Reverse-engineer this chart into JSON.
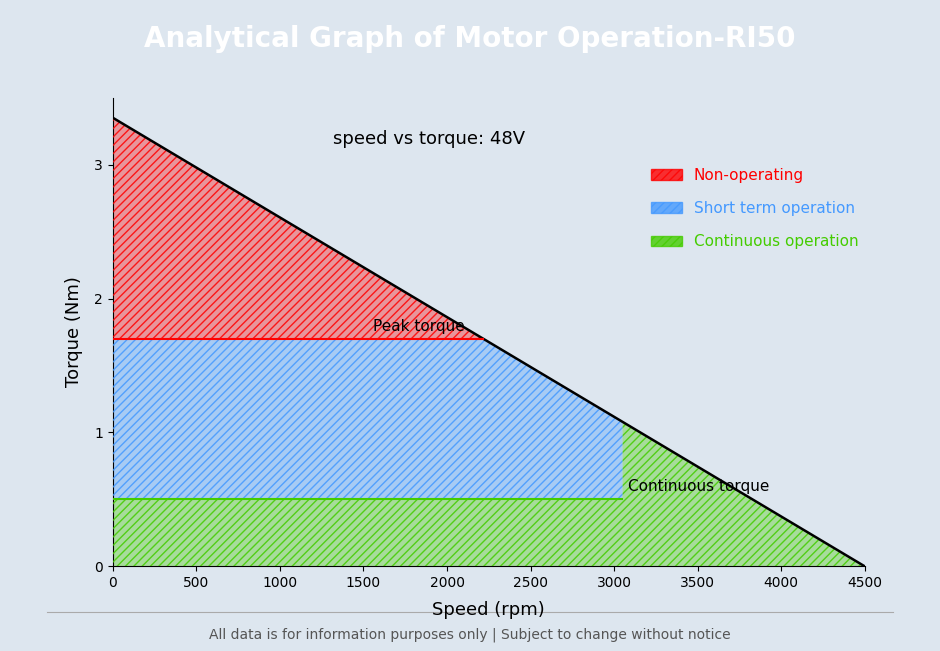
{
  "title": "Analytical Graph of Motor Operation-RI50",
  "title_bg_color": "#3a6a8a",
  "title_text_color": "#ffffff",
  "bg_color": "#dde6ef",
  "subtitle": "speed vs torque: 48V",
  "xlabel": "Speed (rpm)",
  "ylabel": "Torque (Nm)",
  "footer": "All data is for information purposes only | Subject to change without notice",
  "xlim": [
    0,
    4500
  ],
  "ylim": [
    0,
    3.5
  ],
  "xticks": [
    0,
    500,
    1000,
    1500,
    2000,
    2500,
    3000,
    3500,
    4000,
    4500
  ],
  "yticks": [
    0,
    1,
    2,
    3
  ],
  "peak_torque_value": 1.7,
  "continuous_torque_value": 0.5,
  "continuous_torque_speed": 3050,
  "max_torque_at_zero": 3.35,
  "max_speed": 4500,
  "red_color": "#ff0000",
  "blue_color": "#4499ff",
  "green_color": "#44cc00",
  "legend_labels": [
    "Non-operating",
    "Short term operation",
    "Continuous operation"
  ],
  "peak_torque_label": "Peak torque",
  "continuous_torque_label": "Continuous torque"
}
